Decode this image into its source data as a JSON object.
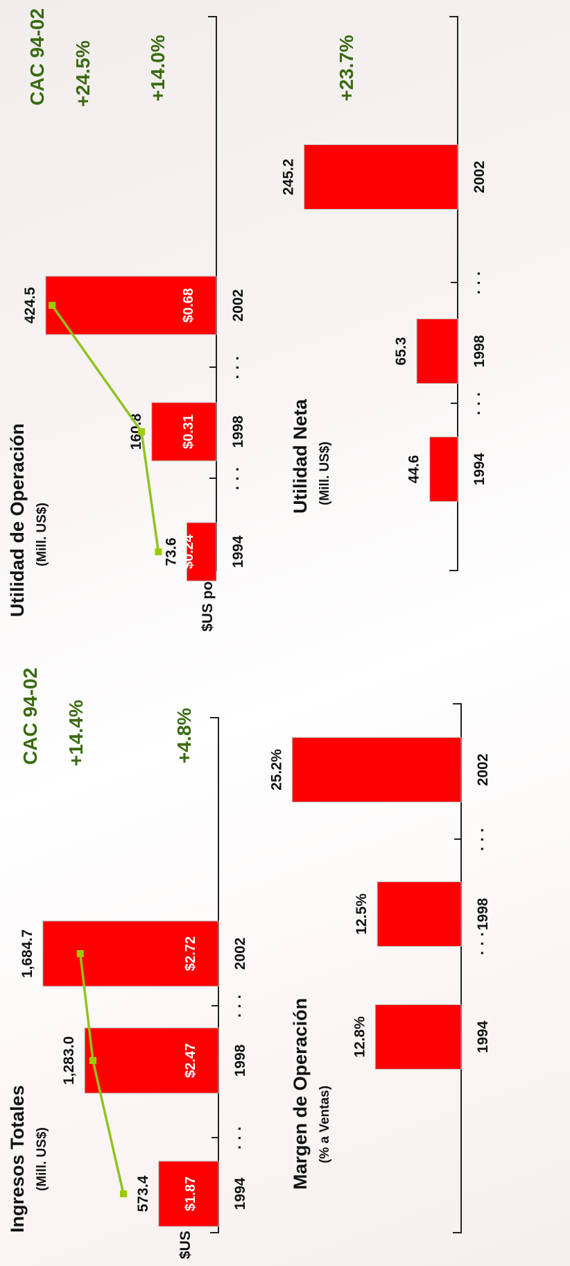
{
  "charts": {
    "ingresos": {
      "title": "Ingresos Totales",
      "subtitle": "(Mill. US$)",
      "cac_header": "CAC 94-02",
      "growth_main": "+14.4%",
      "growth_secondary": "+4.8%",
      "per_unit_label": "$US por CU"
    },
    "utilidad_operacion": {
      "title": "Utilidad de Operación",
      "subtitle": "(Mill. US$)",
      "cac_header": "CAC 94-02",
      "growth_main": "+24.5%",
      "growth_secondary": "+14.0%",
      "per_unit_label": "$US por CU"
    },
    "margen": {
      "title": "Margen de Operación",
      "subtitle": "(% a Ventas)"
    },
    "utilidad_neta": {
      "title": "Utilidad Neta",
      "subtitle": "(Mill. US$)",
      "growth_main": "+23.7%"
    }
  },
  "colors": {
    "bar": "#ff0000",
    "line": "#8fc31f",
    "marker": "#9acd00",
    "growth": "#3a6b12"
  },
  "chart_data": [
    {
      "id": "ingresos",
      "type": "bar",
      "categories": [
        "1994",
        "1998",
        "2002"
      ],
      "gap_label": "· · ·",
      "values": [
        573.4,
        1283.0,
        1684.7
      ],
      "value_labels": [
        "573.4",
        "1,283.0",
        "1,684.7"
      ],
      "ylim": [
        0,
        1750
      ],
      "line": {
        "values": [
          1.87,
          2.47,
          2.72
        ],
        "labels": [
          "$1.87",
          "$2.47",
          "$2.72"
        ],
        "ylim": [
          0,
          4.3
        ]
      }
    },
    {
      "id": "utilidad_operacion",
      "type": "bar",
      "categories": [
        "1994",
        "1998",
        "2002"
      ],
      "gap_label": "· · ·",
      "values": [
        73.6,
        160.8,
        424.5
      ],
      "value_labels": [
        "73.6",
        "160.8",
        "424.5"
      ],
      "ylim": [
        0,
        445
      ],
      "line": {
        "values": [
          0.24,
          0.31,
          0.68
        ],
        "labels": [
          "$0.24",
          "$0.31",
          "$0.68"
        ],
        "ylim": [
          0,
          0.89
        ]
      }
    },
    {
      "id": "margen",
      "type": "bar",
      "categories": [
        "1994",
        "1998",
        "2002"
      ],
      "gap_label": "· · ·",
      "values": [
        12.8,
        12.5,
        25.2
      ],
      "value_labels": [
        "12.8%",
        "12.5%",
        "25.2%"
      ],
      "ylim": [
        0,
        30
      ]
    },
    {
      "id": "utilidad_neta",
      "type": "bar",
      "categories": [
        "1994",
        "1998",
        "2002"
      ],
      "gap_label": "· · ·",
      "values": [
        44.6,
        65.3,
        245.2
      ],
      "value_labels": [
        "44.6",
        "65.3",
        "245.2"
      ],
      "ylim": [
        0,
        330
      ]
    }
  ]
}
